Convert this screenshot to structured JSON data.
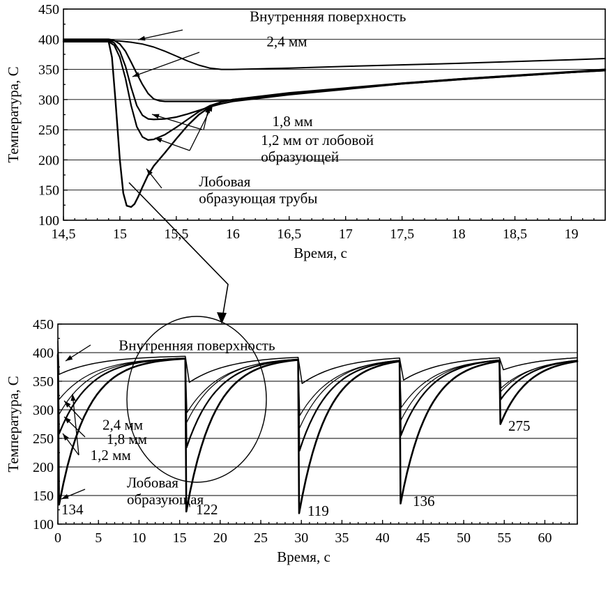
{
  "chart_data": [
    {
      "type": "line",
      "xlabel": "Время, с",
      "ylabel": "Температура, С",
      "xlim": [
        14.5,
        19.3
      ],
      "ylim": [
        100,
        450
      ],
      "xticks": [
        "14,5",
        "15",
        "15,5",
        "16",
        "16,5",
        "17",
        "17,5",
        "18",
        "18,5",
        "19"
      ],
      "xtick_values": [
        14.5,
        15,
        15.5,
        16,
        16.5,
        17,
        17.5,
        18,
        18.5,
        19
      ],
      "yticks": [
        "100",
        "150",
        "200",
        "250",
        "300",
        "350",
        "400",
        "450"
      ],
      "ytick_values": [
        100,
        150,
        200,
        250,
        300,
        350,
        400,
        450
      ],
      "grid": "horizontal",
      "series": [
        {
          "name": "Внутренняя поверхность",
          "width": 2.0,
          "x": [
            14.5,
            14.9,
            15.0,
            15.1,
            15.2,
            15.3,
            15.4,
            15.5,
            15.6,
            15.7,
            15.8,
            15.9,
            16.0,
            16.5,
            17.0,
            18.0,
            19.0,
            19.3
          ],
          "y": [
            398,
            398,
            397,
            395,
            392,
            387,
            380,
            372,
            364,
            357,
            352,
            350,
            350,
            352,
            355,
            360,
            366,
            368
          ]
        },
        {
          "name": "2,4 мм",
          "width": 2.2,
          "x": [
            14.5,
            14.9,
            14.95,
            15.0,
            15.05,
            15.1,
            15.15,
            15.2,
            15.25,
            15.3,
            15.35,
            15.4,
            15.5,
            15.6,
            15.8,
            16.0,
            16.5,
            17.0,
            17.5,
            18.0,
            18.5,
            19.0,
            19.3
          ],
          "y": [
            400,
            400,
            398,
            392,
            380,
            362,
            343,
            325,
            310,
            301,
            298,
            297,
            297,
            297,
            297,
            299,
            310,
            318,
            327,
            334,
            340,
            345,
            348
          ]
        },
        {
          "name": "1,8 мм",
          "width": 2.2,
          "x": [
            14.5,
            14.9,
            14.95,
            15.0,
            15.05,
            15.1,
            15.15,
            15.2,
            15.25,
            15.3,
            15.4,
            15.5,
            15.6,
            15.7,
            15.8,
            15.9,
            16.0,
            16.5,
            17.0,
            17.5,
            18.0,
            18.5,
            19.0,
            19.3
          ],
          "y": [
            398,
            398,
            394,
            380,
            355,
            320,
            290,
            274,
            268,
            267,
            268,
            271,
            276,
            282,
            288,
            293,
            297,
            308,
            317,
            326,
            333,
            339,
            345,
            348
          ]
        },
        {
          "name": "1,2 мм от лобовой образующей",
          "width": 2.2,
          "x": [
            14.5,
            14.9,
            14.95,
            15.0,
            15.05,
            15.1,
            15.15,
            15.2,
            15.25,
            15.3,
            15.4,
            15.5,
            15.6,
            15.7,
            15.8,
            15.9,
            16.0,
            16.5,
            17.0,
            17.5,
            18.0,
            18.5,
            19.0,
            19.3
          ],
          "y": [
            396,
            396,
            390,
            370,
            335,
            290,
            255,
            238,
            233,
            234,
            242,
            254,
            267,
            280,
            290,
            296,
            300,
            310,
            318,
            326,
            333,
            339,
            345,
            349
          ]
        },
        {
          "name": "Лобовая образующая трубы",
          "width": 2.4,
          "x": [
            14.5,
            14.9,
            14.93,
            14.96,
            15.0,
            15.03,
            15.06,
            15.1,
            15.13,
            15.16,
            15.2,
            15.25,
            15.3,
            15.4,
            15.5,
            15.6,
            15.7,
            15.8,
            15.9,
            16.0,
            16.5,
            17.0,
            17.5,
            18.0,
            18.5,
            19.0,
            19.3
          ],
          "y": [
            396,
            396,
            370,
            300,
            200,
            145,
            124,
            122,
            127,
            138,
            155,
            175,
            190,
            212,
            235,
            257,
            275,
            288,
            296,
            300,
            311,
            319,
            327,
            334,
            340,
            346,
            350
          ]
        }
      ],
      "annotations": [
        {
          "lines": [
            "Внутренняя поверхность"
          ],
          "at": [
            16.15,
            430
          ]
        },
        {
          "lines": [
            "2,4 мм"
          ],
          "at": [
            16.3,
            388
          ]
        },
        {
          "lines": [
            "1,8 мм"
          ],
          "at": [
            16.35,
            256
          ]
        },
        {
          "lines": [
            "1,2 мм от лобовой",
            "образующей"
          ],
          "at": [
            16.25,
            225
          ]
        },
        {
          "lines": [
            "Лобовая",
            "образующая трубы"
          ],
          "at": [
            15.7,
            156
          ]
        }
      ]
    },
    {
      "type": "line",
      "xlabel": "Время, с",
      "ylabel": "Температура, С",
      "xlim": [
        0,
        64
      ],
      "ylim": [
        100,
        450
      ],
      "xticks": [
        "0",
        "5",
        "10",
        "15",
        "20",
        "25",
        "30",
        "35",
        "40",
        "45",
        "50",
        "55",
        "60"
      ],
      "xtick_values": [
        0,
        5,
        10,
        15,
        20,
        25,
        30,
        35,
        40,
        45,
        50,
        55,
        60
      ],
      "yticks": [
        "100",
        "150",
        "200",
        "250",
        "300",
        "350",
        "400",
        "450"
      ],
      "ytick_values": [
        100,
        150,
        200,
        250,
        300,
        350,
        400,
        450
      ],
      "grid": "horizontal",
      "pulses": [
        {
          "t": 15.7,
          "front_min": 122,
          "near_min": 234,
          "mid_min": 278,
          "sub_min": 295,
          "inner_min": 348
        },
        {
          "t": 29.6,
          "front_min": 119,
          "near_min": 228,
          "mid_min": 268,
          "sub_min": 290,
          "inner_min": 346
        },
        {
          "t": 42.1,
          "front_min": 136,
          "near_min": 255,
          "mid_min": 282,
          "sub_min": 304,
          "inner_min": 352
        },
        {
          "t": 54.4,
          "front_min": 275,
          "near_min": 318,
          "mid_min": 332,
          "sub_min": 338,
          "inner_min": 370
        }
      ],
      "value_labels": [
        "134",
        "122",
        "119",
        "136",
        "275"
      ],
      "annotations": [
        {
          "lines": [
            "Внутренняя поверхность"
          ],
          "at": [
            7.5,
            404
          ]
        },
        {
          "lines": [
            "2,4 мм"
          ],
          "at": [
            5.5,
            265
          ]
        },
        {
          "lines": [
            "1,8 мм"
          ],
          "at": [
            6.0,
            240
          ]
        },
        {
          "lines": [
            "1,2 мм"
          ],
          "at": [
            4.0,
            212
          ]
        },
        {
          "lines": [
            "Лобовая",
            "образующая"
          ],
          "at": [
            8.5,
            164
          ]
        }
      ]
    }
  ]
}
